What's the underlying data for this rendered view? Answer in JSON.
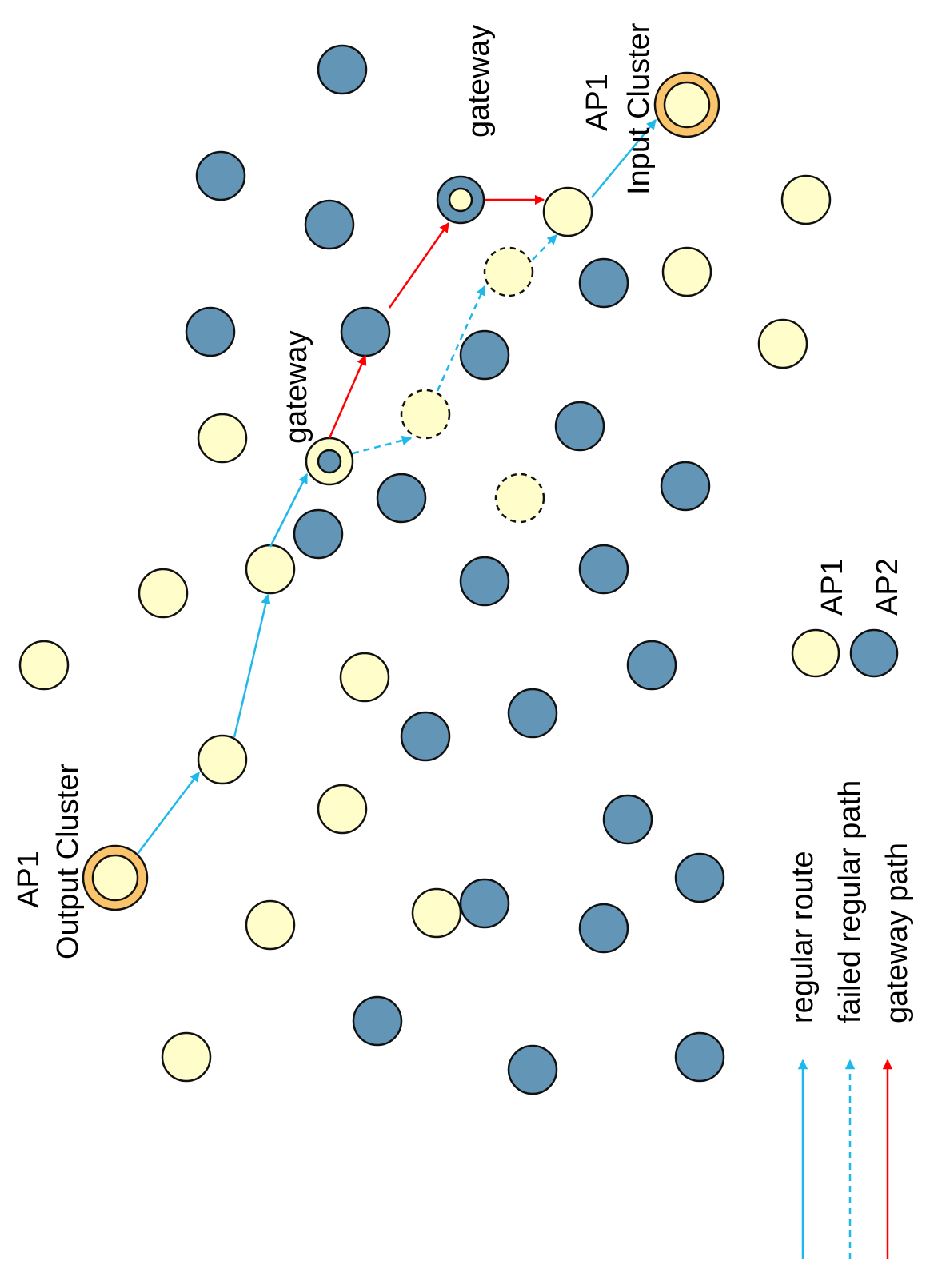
{
  "colors": {
    "ap1_fill": "#FFFDC9",
    "ap2_fill": "#6295B6",
    "cluster_ring": "#F9C46C",
    "regular_route": "#1EB8EA",
    "gateway_path": "#FF0000",
    "outline": "#111111"
  },
  "labels": {
    "output_cluster_line1": "AP1",
    "output_cluster_line2": "Output Cluster",
    "input_cluster_line1": "AP1",
    "input_cluster_line2": "Input Cluster",
    "gateway_1": "gateway",
    "gateway_2": "gateway"
  },
  "legend": {
    "ap1": "AP1",
    "ap2": "AP2",
    "regular_route": "regular  route",
    "failed_regular_path": "failed regular  path",
    "gateway_path": "gateway  path"
  }
}
